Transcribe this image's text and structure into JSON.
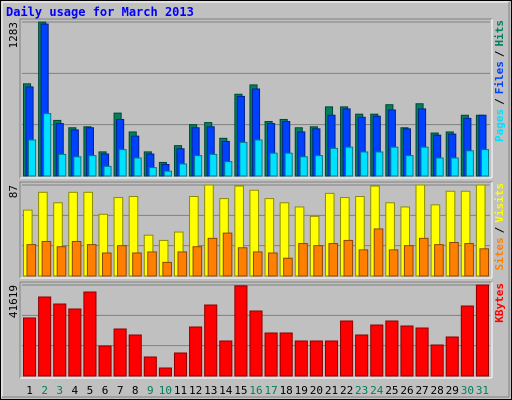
{
  "chart_data": {
    "type": "bar",
    "title": "Daily usage for March 2013",
    "categories": [
      "1",
      "2",
      "3",
      "4",
      "5",
      "6",
      "7",
      "8",
      "9",
      "10",
      "11",
      "12",
      "13",
      "14",
      "15",
      "16",
      "17",
      "18",
      "19",
      "20",
      "21",
      "22",
      "23",
      "24",
      "25",
      "26",
      "27",
      "28",
      "29",
      "30",
      "31"
    ],
    "category_colors": [
      "#000000",
      "#00805c",
      "#00805c",
      "#000000",
      "#000000",
      "#000000",
      "#000000",
      "#000000",
      "#00805c",
      "#00805c",
      "#000000",
      "#000000",
      "#000000",
      "#000000",
      "#000000",
      "#00805c",
      "#00805c",
      "#000000",
      "#000000",
      "#000000",
      "#000000",
      "#000000",
      "#00805c",
      "#00805c",
      "#000000",
      "#000000",
      "#000000",
      "#000000",
      "#000000",
      "#00805c",
      "#00805c"
    ],
    "legend_separator": "/",
    "panels": [
      {
        "ylim": [
          0,
          1283
        ],
        "yticks": [
          1283
        ],
        "series": [
          {
            "name": "Hits",
            "color": "#00805c",
            "values": [
              768,
              1283,
              463,
              402,
              410,
              201,
              524,
              367,
              201,
              113,
              253,
              428,
              445,
              314,
              681,
              759,
              454,
              471,
              402,
              410,
              576,
              576,
              515,
              515,
              594,
              402,
              602,
              358,
              367,
              506,
              506
            ]
          },
          {
            "name": "Files",
            "color": "#0040ff",
            "values": [
              742,
              1266,
              437,
              384,
              402,
              183,
              471,
              332,
              183,
              96,
              227,
              402,
              410,
              288,
              663,
              725,
              437,
              454,
              367,
              393,
              506,
              559,
              489,
              498,
              550,
              393,
              559,
              340,
              349,
              480,
              506
            ]
          },
          {
            "name": "Pages",
            "color": "#00e0ff",
            "values": [
              300,
              520,
              180,
              160,
              170,
              80,
              220,
              150,
              70,
              40,
              100,
              170,
              180,
              120,
              280,
              300,
              190,
              190,
              160,
              170,
              230,
              240,
              200,
              200,
              240,
              170,
              240,
              150,
              150,
              210,
              220
            ]
          }
        ]
      },
      {
        "ylim": [
          0,
          87
        ],
        "yticks": [
          87
        ],
        "series": [
          {
            "name": "Visits",
            "color": "#ffff00",
            "values": [
              63,
              80,
              70,
              80,
              80,
              59,
              75,
              76,
              39,
              34,
              42,
              76,
              87,
              74,
              86,
              82,
              74,
              70,
              66,
              57,
              79,
              75,
              76,
              86,
              70,
              66,
              87,
              68,
              81,
              81,
              87
            ]
          },
          {
            "name": "Sites",
            "color": "#ff8000",
            "values": [
              30,
              33,
              28,
              33,
              30,
              22,
              29,
              22,
              23,
              13,
              23,
              28,
              36,
              41,
              27,
              23,
              22,
              17,
              31,
              29,
              31,
              34,
              25,
              45,
              25,
              29,
              36,
              30,
              32,
              31,
              26
            ]
          }
        ]
      },
      {
        "ylim": [
          0,
          41619
        ],
        "yticks": [
          41619
        ],
        "series": [
          {
            "name": "KBytes",
            "color": "#ff0000",
            "values": [
              26524,
              36127,
              32926,
              30639,
              38413,
              13719,
              21493,
              18749,
              8689,
              3658,
              10518,
              22408,
              32468,
              16006,
              41200,
              29725,
              19664,
              19664,
              16006,
              16006,
              16006,
              25152,
              18749,
              23322,
              25152,
              22865,
              21950,
              14176,
              17835,
              32011,
              41619
            ]
          }
        ]
      }
    ]
  }
}
